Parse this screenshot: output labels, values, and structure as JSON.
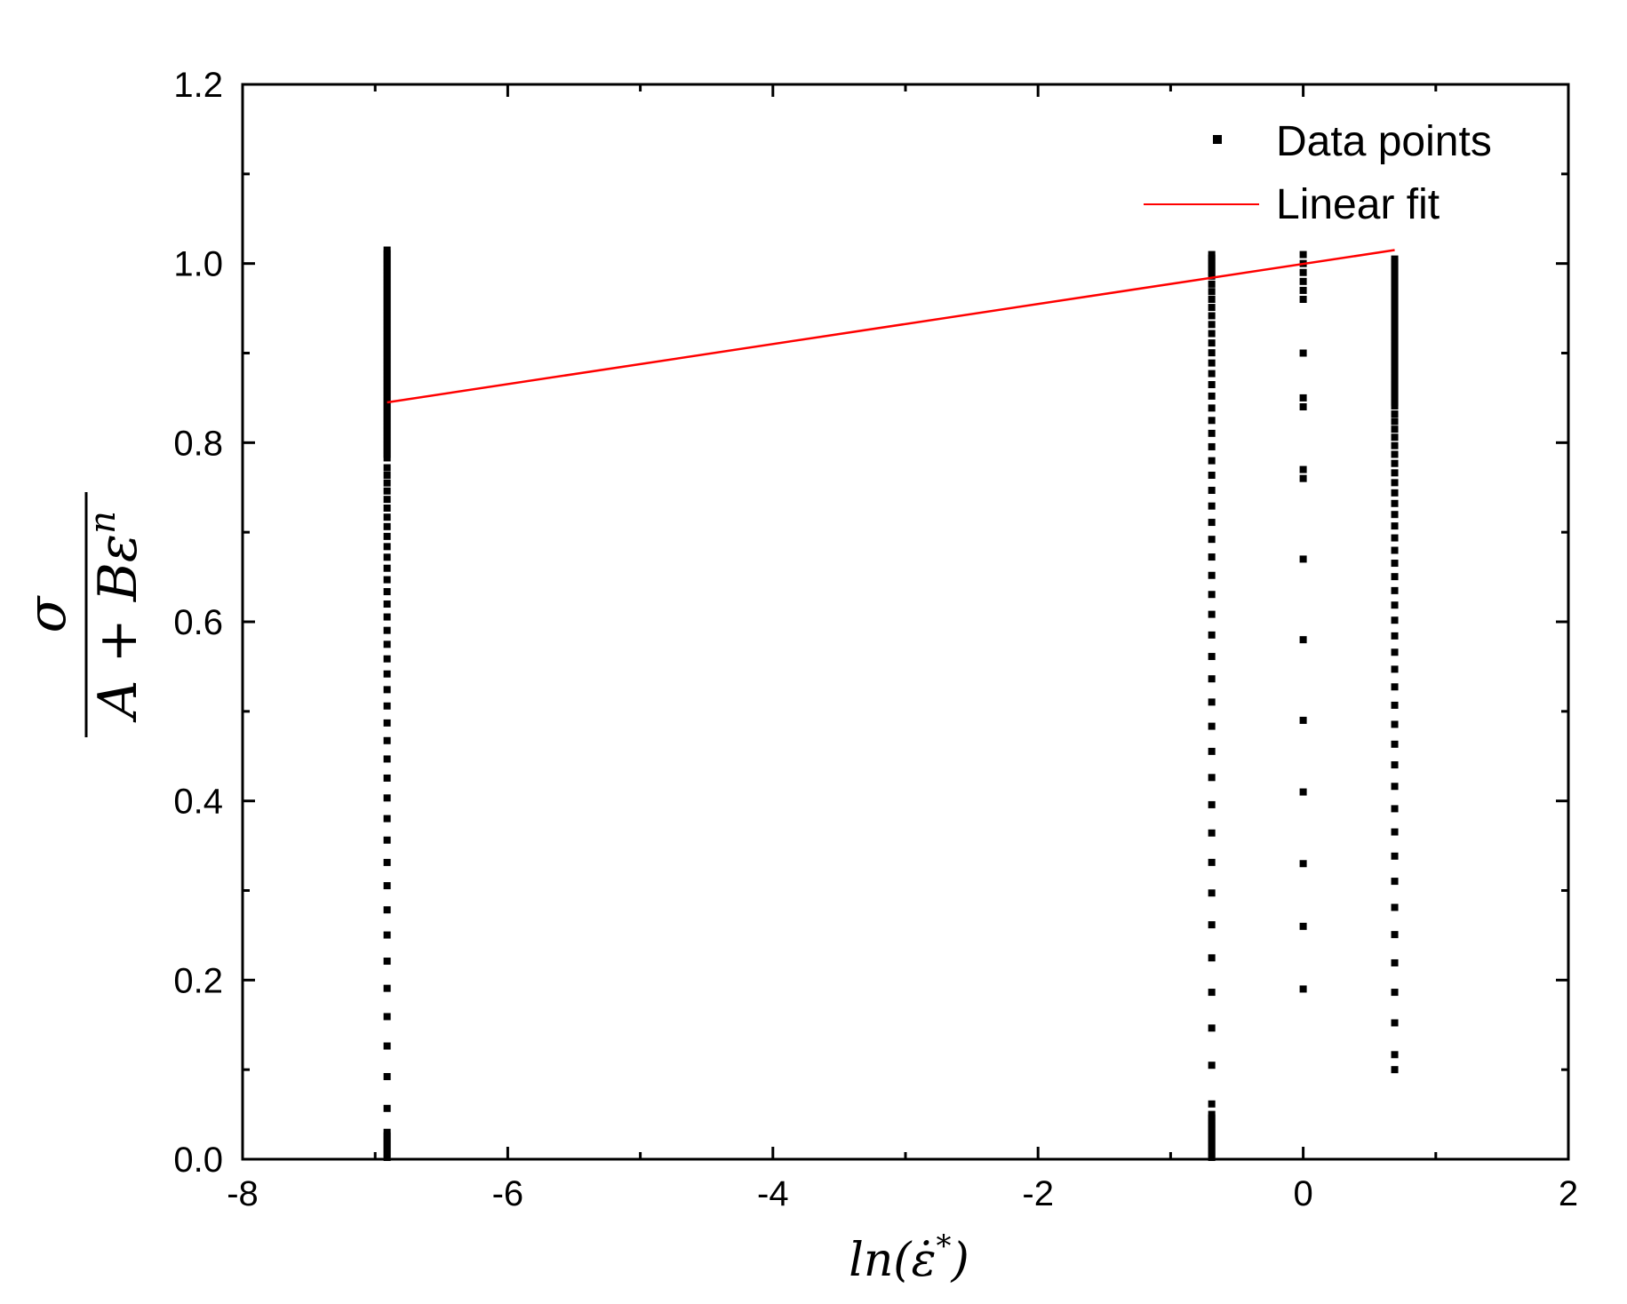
{
  "chart_data": {
    "type": "scatter",
    "xlabel": {
      "base": "ln(",
      "symbol": "ε̇",
      "sup": "*",
      "close": ")"
    },
    "ylabel": {
      "numerator": "σ",
      "denominator_base": "A + Bε",
      "denominator_sup": "n"
    },
    "xlim": [
      -8,
      2
    ],
    "ylim": [
      0,
      1.2
    ],
    "x_ticks": [
      "-8",
      "-6",
      "-4",
      "-2",
      "0",
      "2"
    ],
    "y_ticks": [
      "0.0",
      "0.2",
      "0.4",
      "0.6",
      "0.8",
      "1.0",
      "1.2"
    ],
    "grid": false,
    "legend_position": "top-right",
    "series": [
      {
        "name": "Data points",
        "kind": "scatter",
        "color": "#000000",
        "groups": [
          {
            "x": -6.91,
            "y_min": 0.0,
            "y_max": 1.015,
            "dense_above": 0.78,
            "dense_below": 0.03
          },
          {
            "x": -0.69,
            "y_min": 0.0,
            "y_max": 1.01,
            "dense_above": 0.985,
            "dense_below": 0.05
          },
          {
            "x": 0.0,
            "points": [
              0.19,
              0.26,
              0.33,
              0.41,
              0.49,
              0.58,
              0.67,
              0.76,
              0.77,
              0.84,
              0.85,
              0.9,
              0.96,
              0.97,
              0.98,
              0.99,
              1.0,
              1.01
            ]
          },
          {
            "x": 0.69,
            "y_min": 0.1,
            "y_max": 1.005,
            "dense_above": 0.84,
            "dense_below": 0.0
          }
        ]
      },
      {
        "name": "Linear fit",
        "kind": "line",
        "color": "#ff0000",
        "x": [
          -6.91,
          0.69
        ],
        "y": [
          0.845,
          1.015
        ]
      }
    ]
  }
}
